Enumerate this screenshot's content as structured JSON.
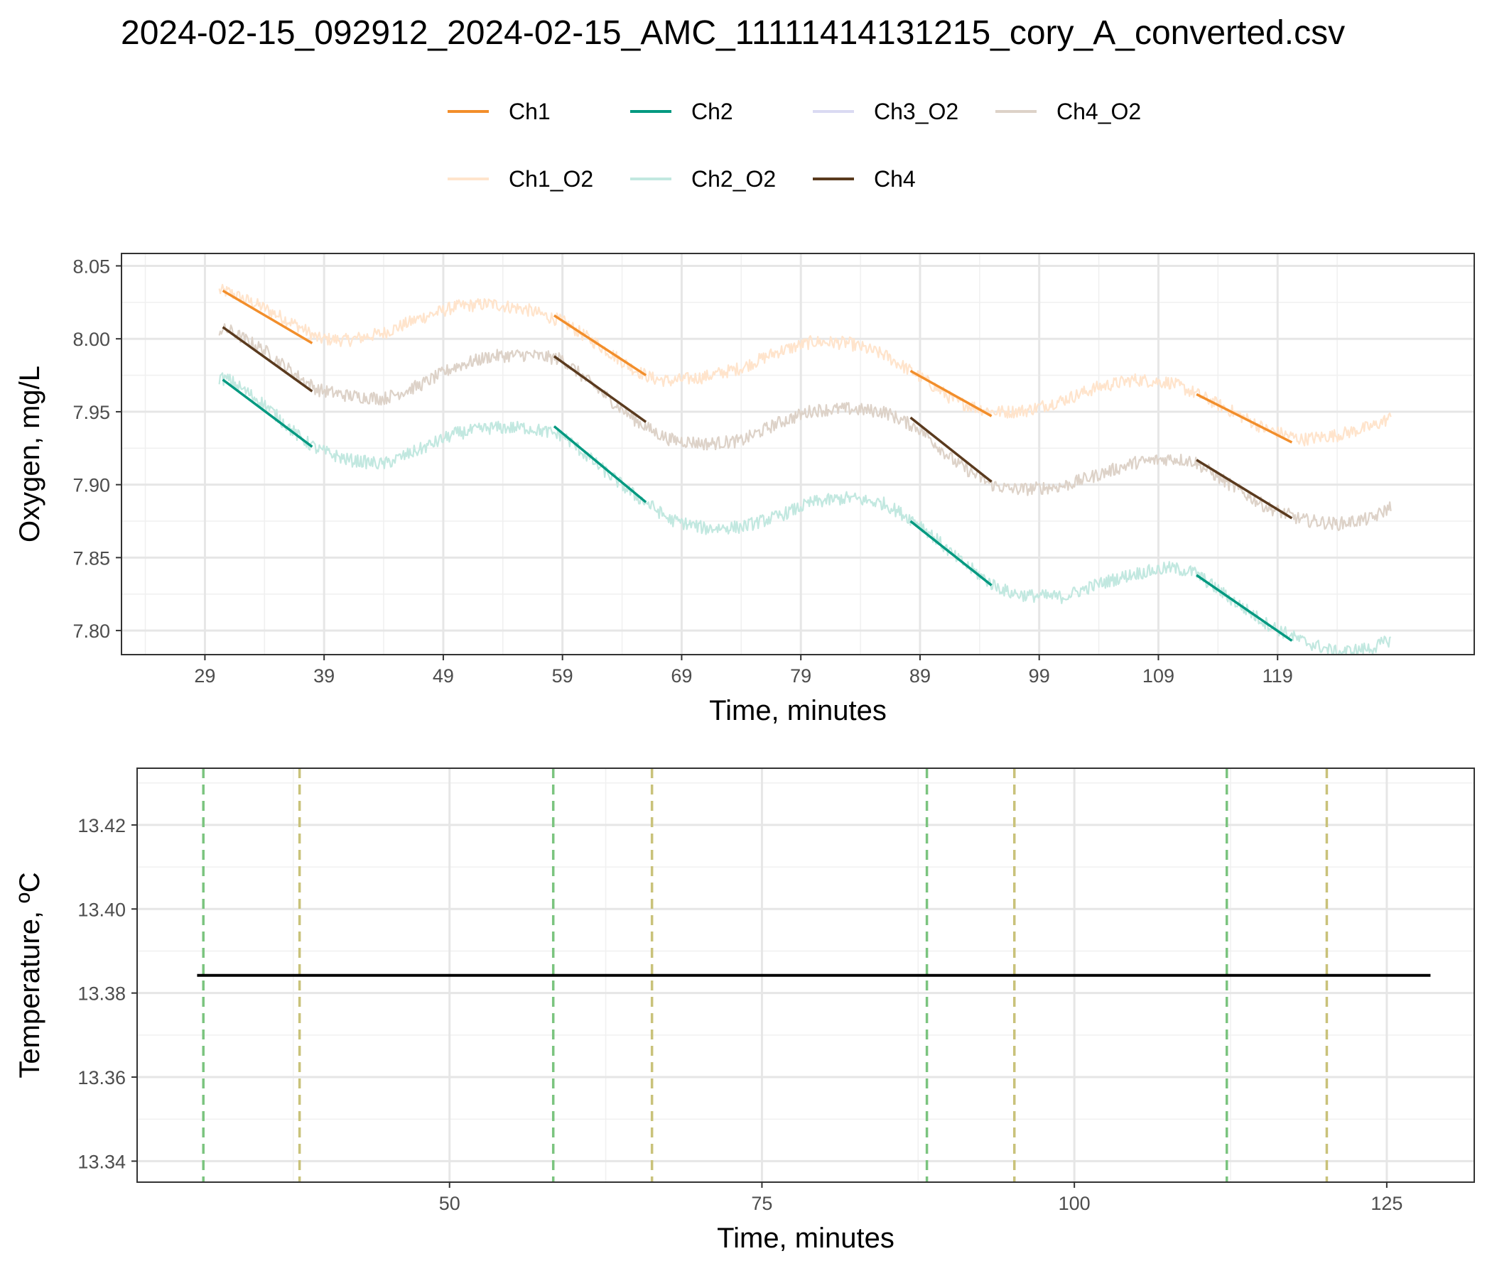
{
  "title": "2024-02-15_092912_2024-02-15_AMC_11111414131215_cory_A_converted.csv",
  "legend": {
    "position": "top",
    "items": [
      {
        "label": "Ch1",
        "color": "#F28E2B",
        "kind": "fit"
      },
      {
        "label": "Ch2",
        "color": "#009980",
        "kind": "fit"
      },
      {
        "label": "Ch3_O2",
        "color": "#DADAF2",
        "kind": "raw"
      },
      {
        "label": "Ch4_O2",
        "color": "#DDD2C8",
        "kind": "raw"
      },
      {
        "label": "Ch1_O2",
        "color": "#FFE4CC",
        "kind": "raw"
      },
      {
        "label": "Ch2_O2",
        "color": "#C2E8E0",
        "kind": "raw"
      },
      {
        "label": "Ch4",
        "color": "#5A3A1E",
        "kind": "fit"
      }
    ]
  },
  "chart_data": [
    {
      "type": "line",
      "xlabel": "Time, minutes",
      "ylabel": "Oxygen, mg/L",
      "xlim": [
        22.0,
        135.5
      ],
      "ylim": [
        7.7835,
        8.0585
      ],
      "x_ticks": [
        29,
        39,
        49,
        59,
        69,
        79,
        89,
        99,
        109,
        119
      ],
      "x_tick_labels": [
        "29",
        "39",
        "49",
        "59",
        "69",
        "79",
        "89",
        "99",
        "109",
        "119"
      ],
      "y_ticks": [
        7.8,
        7.85,
        7.9,
        7.95,
        8.0,
        8.05
      ],
      "y_tick_labels": [
        "7.80",
        "7.85",
        "7.90",
        "7.95",
        "8.00",
        "8.05"
      ],
      "grid": true,
      "raw_series": [
        {
          "name": "Ch1_O2",
          "color": "#FFE4CC",
          "noise": 0.0045,
          "x": [
            30.2,
            31,
            34,
            37,
            38.5,
            41,
            44,
            47,
            50,
            53,
            56,
            59,
            62,
            65,
            66.5,
            68,
            71,
            74,
            77,
            80,
            83,
            86,
            89,
            92,
            95,
            96.5,
            98,
            101,
            104,
            107,
            110,
            112,
            115,
            118,
            121,
            124,
            127,
            128.5
          ],
          "y": [
            8.033,
            8.032,
            8.021,
            8.008,
            8.0,
            7.999,
            8.004,
            8.014,
            8.022,
            8.024,
            8.02,
            8.012,
            7.996,
            7.979,
            7.973,
            7.971,
            7.974,
            7.98,
            7.991,
            7.998,
            7.997,
            7.989,
            7.974,
            7.957,
            7.95,
            7.95,
            7.951,
            7.958,
            7.967,
            7.972,
            7.97,
            7.963,
            7.951,
            7.938,
            7.931,
            7.934,
            7.94,
            7.946
          ]
        },
        {
          "name": "Ch4_O2",
          "color": "#DDD2C8",
          "noise": 0.0045,
          "x": [
            30.2,
            31,
            34,
            37,
            38.5,
            41,
            44,
            47,
            50,
            53,
            56,
            59,
            62,
            65,
            66.5,
            68,
            71,
            74,
            77,
            80,
            83,
            86,
            89,
            92,
            95,
            96.5,
            98,
            101,
            104,
            107,
            110,
            112,
            115,
            118,
            121,
            124,
            127,
            128.5
          ],
          "y": [
            8.006,
            8.006,
            7.992,
            7.973,
            7.965,
            7.961,
            7.959,
            7.968,
            7.981,
            7.988,
            7.989,
            7.986,
            7.965,
            7.945,
            7.937,
            7.931,
            7.928,
            7.93,
            7.942,
            7.951,
            7.952,
            7.95,
            7.938,
            7.915,
            7.9,
            7.897,
            7.897,
            7.899,
            7.907,
            7.915,
            7.918,
            7.916,
            7.9,
            7.885,
            7.876,
            7.873,
            7.877,
            7.885
          ]
        },
        {
          "name": "Ch2_O2",
          "color": "#C2E8E0",
          "noise": 0.0045,
          "x": [
            30.2,
            31,
            34,
            37,
            38.5,
            41,
            44,
            47,
            50,
            53,
            56,
            59,
            62,
            65,
            66.5,
            68,
            71,
            74,
            77,
            80,
            83,
            86,
            89,
            92,
            95,
            96.5,
            98,
            101,
            104,
            107,
            110,
            112,
            115,
            118,
            121,
            124,
            127,
            128.5
          ],
          "y": [
            7.973,
            7.972,
            7.955,
            7.932,
            7.924,
            7.917,
            7.914,
            7.924,
            7.935,
            7.939,
            7.939,
            7.934,
            7.913,
            7.893,
            7.885,
            7.876,
            7.87,
            7.871,
            7.878,
            7.888,
            7.891,
            7.887,
            7.873,
            7.85,
            7.832,
            7.826,
            7.824,
            7.823,
            7.832,
            7.839,
            7.843,
            7.84,
            7.822,
            7.805,
            7.793,
            7.785,
            7.788,
            7.794
          ]
        }
      ],
      "series": [
        {
          "name": "Ch1",
          "color": "#F28E2B",
          "segments": [
            {
              "x": [
                30.5,
                38
              ],
              "y": [
                8.033,
                7.997
              ]
            },
            {
              "x": [
                58.3,
                66
              ],
              "y": [
                8.016,
                7.975
              ]
            },
            {
              "x": [
                88.2,
                95
              ],
              "y": [
                7.978,
                7.947
              ]
            },
            {
              "x": [
                112.2,
                120.2
              ],
              "y": [
                7.962,
                7.929
              ]
            }
          ]
        },
        {
          "name": "Ch2",
          "color": "#009980",
          "segments": [
            {
              "x": [
                30.5,
                38
              ],
              "y": [
                7.972,
                7.926
              ]
            },
            {
              "x": [
                58.3,
                66
              ],
              "y": [
                7.94,
                7.888
              ]
            },
            {
              "x": [
                88.2,
                95
              ],
              "y": [
                7.875,
                7.831
              ]
            },
            {
              "x": [
                112.2,
                120.2
              ],
              "y": [
                7.838,
                7.793
              ]
            }
          ]
        },
        {
          "name": "Ch4",
          "color": "#5A3A1E",
          "segments": [
            {
              "x": [
                30.5,
                38
              ],
              "y": [
                8.008,
                7.964
              ]
            },
            {
              "x": [
                58.3,
                66
              ],
              "y": [
                7.988,
                7.943
              ]
            },
            {
              "x": [
                88.2,
                95
              ],
              "y": [
                7.946,
                7.902
              ]
            },
            {
              "x": [
                112.2,
                120.2
              ],
              "y": [
                7.917,
                7.877
              ]
            }
          ]
        }
      ]
    },
    {
      "type": "line",
      "xlabel": "Time, minutes",
      "ylabel": "Temperature, ºC",
      "xlim": [
        25.0,
        132.0
      ],
      "ylim": [
        13.335,
        13.4335
      ],
      "x_ticks": [
        50,
        75,
        100,
        125
      ],
      "x_tick_labels": [
        "50",
        "75",
        "100",
        "125"
      ],
      "y_ticks": [
        13.34,
        13.36,
        13.38,
        13.4,
        13.42
      ],
      "y_tick_labels": [
        "13.34",
        "13.36",
        "13.38",
        "13.40",
        "13.42"
      ],
      "grid": true,
      "series": [
        {
          "name": "Temperature",
          "color": "#000000",
          "x": [
            29.8,
            128.5
          ],
          "y": [
            13.3842,
            13.3842
          ]
        }
      ],
      "vlines": [
        {
          "x": 30.3,
          "color": "#7BC47F",
          "role": "start"
        },
        {
          "x": 38.0,
          "color": "#C9C27A",
          "role": "end"
        },
        {
          "x": 58.3,
          "color": "#7BC47F",
          "role": "start"
        },
        {
          "x": 66.2,
          "color": "#C9C27A",
          "role": "end"
        },
        {
          "x": 88.2,
          "color": "#7BC47F",
          "role": "start"
        },
        {
          "x": 95.2,
          "color": "#C9C27A",
          "role": "end"
        },
        {
          "x": 112.2,
          "color": "#7BC47F",
          "role": "start"
        },
        {
          "x": 120.2,
          "color": "#C9C27A",
          "role": "end"
        }
      ]
    }
  ]
}
